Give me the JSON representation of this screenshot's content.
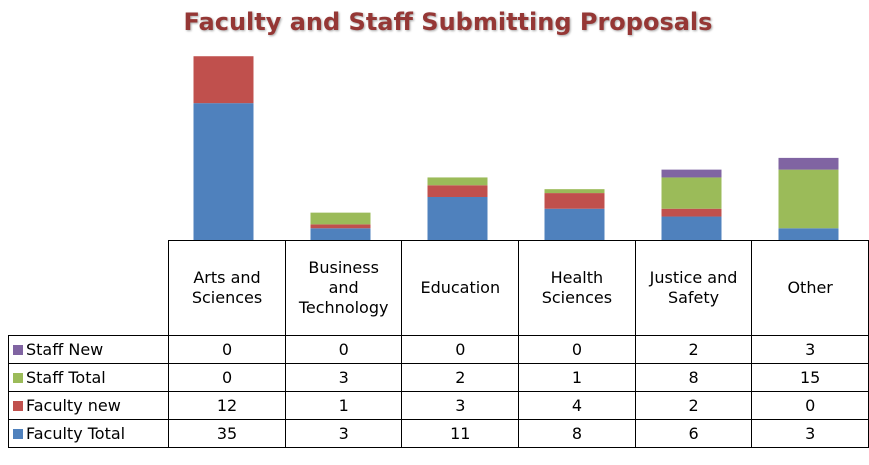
{
  "chart_data": {
    "type": "stacked-bar",
    "title": "Faculty and Staff Submitting Proposals",
    "categories": [
      "Arts and Sciences",
      "Business and Technology",
      "Education",
      "Health Sciences",
      "Justice and Safety",
      "Other"
    ],
    "series": [
      {
        "name": "Faculty Total",
        "color": "#4f81bd",
        "values": [
          35,
          3,
          11,
          8,
          6,
          3
        ]
      },
      {
        "name": "Faculty new",
        "color": "#c0504d",
        "values": [
          12,
          1,
          3,
          4,
          2,
          0
        ]
      },
      {
        "name": "Staff Total",
        "color": "#9bbb59",
        "values": [
          0,
          3,
          2,
          1,
          8,
          15
        ]
      },
      {
        "name": "Staff New",
        "color": "#8064a2",
        "values": [
          0,
          0,
          0,
          0,
          2,
          3
        ]
      }
    ],
    "ylim": [
      0,
      50
    ]
  }
}
